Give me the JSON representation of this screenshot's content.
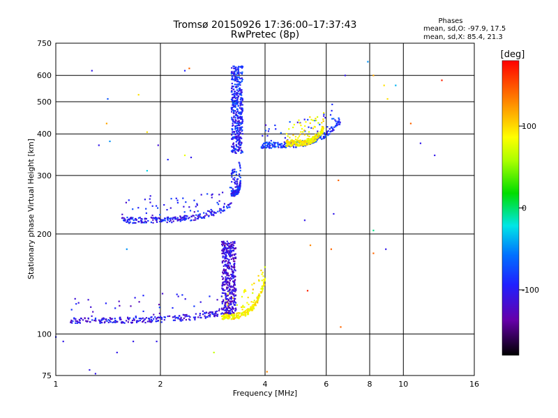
{
  "chart_data": {
    "type": "scatter",
    "title": "Tromsø 20150926 17:36:00–17:37:43",
    "subtitle": "RwPretec (8p)",
    "xlabel": "Frequency [MHz]",
    "ylabel": "Stationary phase Virtual Height [km]",
    "x_scale": "log",
    "y_scale": "log",
    "xlim": [
      1,
      16
    ],
    "ylim": [
      75,
      750
    ],
    "x_ticks": [
      1,
      2,
      4,
      6,
      8,
      10,
      16
    ],
    "y_ticks": [
      75,
      100,
      200,
      300,
      400,
      500,
      600,
      750
    ],
    "grid": true,
    "phase_stats": {
      "title": "Phases",
      "line_o": "mean, sd,O: -97.9, 17.5",
      "line_x": "mean, sd,X:  85.4, 21.3"
    },
    "colorbar": {
      "label": "[deg]",
      "range": [
        -180,
        180
      ],
      "ticks": [
        100,
        0,
        -100
      ]
    },
    "traces": [
      {
        "f_range": [
          1.1,
          3.0
        ],
        "h_range": [
          110,
          116
        ],
        "phase": -110
      },
      {
        "f_range": [
          3.0,
          4.0
        ],
        "h_range": [
          113,
          145
        ],
        "phase": 100
      },
      {
        "f_range": [
          3.0,
          3.3
        ],
        "h_range": [
          115,
          190
        ],
        "phase": -120
      },
      {
        "f_range": [
          1.55,
          3.2
        ],
        "h_range": [
          220,
          245
        ],
        "phase": -105
      },
      {
        "f_range": [
          3.2,
          3.4
        ],
        "h_range": [
          265,
          285
        ],
        "phase": -100
      },
      {
        "f_range": [
          3.2,
          3.45
        ],
        "h_range": [
          350,
          640
        ],
        "phase": -100
      },
      {
        "f_range": [
          3.9,
          6.6
        ],
        "h_range": [
          370,
          440
        ],
        "phase": -95
      },
      {
        "f_range": [
          4.6,
          5.9
        ],
        "h_range": [
          375,
          415
        ],
        "phase": 100
      }
    ],
    "scatter_points": [
      {
        "f": 1.27,
        "h": 620,
        "phase": -110
      },
      {
        "f": 2.35,
        "h": 620,
        "phase": -100
      },
      {
        "f": 2.42,
        "h": 630,
        "phase": 150
      },
      {
        "f": 1.73,
        "h": 525,
        "phase": 110
      },
      {
        "f": 1.41,
        "h": 510,
        "phase": -80
      },
      {
        "f": 1.4,
        "h": 430,
        "phase": 130
      },
      {
        "f": 1.43,
        "h": 380,
        "phase": -60
      },
      {
        "f": 1.33,
        "h": 370,
        "phase": -110
      },
      {
        "f": 1.83,
        "h": 405,
        "phase": 110
      },
      {
        "f": 1.83,
        "h": 310,
        "phase": -40
      },
      {
        "f": 1.97,
        "h": 370,
        "phase": -120
      },
      {
        "f": 2.1,
        "h": 335,
        "phase": -100
      },
      {
        "f": 2.35,
        "h": 345,
        "phase": 90
      },
      {
        "f": 2.45,
        "h": 340,
        "phase": -110
      },
      {
        "f": 7.9,
        "h": 660,
        "phase": -60
      },
      {
        "f": 8.2,
        "h": 600,
        "phase": 130
      },
      {
        "f": 8.8,
        "h": 560,
        "phase": 110
      },
      {
        "f": 9.0,
        "h": 510,
        "phase": 110
      },
      {
        "f": 9.5,
        "h": 560,
        "phase": -50
      },
      {
        "f": 10.5,
        "h": 430,
        "phase": 150
      },
      {
        "f": 11.2,
        "h": 375,
        "phase": -110
      },
      {
        "f": 12.3,
        "h": 345,
        "phase": -110
      },
      {
        "f": 12.9,
        "h": 580,
        "phase": 170
      },
      {
        "f": 6.8,
        "h": 600,
        "phase": -110
      },
      {
        "f": 6.5,
        "h": 290,
        "phase": 150
      },
      {
        "f": 6.3,
        "h": 230,
        "phase": -110
      },
      {
        "f": 8.2,
        "h": 205,
        "phase": -20
      },
      {
        "f": 8.2,
        "h": 175,
        "phase": 150
      },
      {
        "f": 8.9,
        "h": 180,
        "phase": -110
      },
      {
        "f": 6.2,
        "h": 180,
        "phase": 150
      },
      {
        "f": 5.4,
        "h": 185,
        "phase": 140
      },
      {
        "f": 6.6,
        "h": 105,
        "phase": 150
      },
      {
        "f": 5.3,
        "h": 135,
        "phase": 170
      },
      {
        "f": 4.05,
        "h": 77,
        "phase": 140
      },
      {
        "f": 1.0,
        "h": 98,
        "phase": -100
      },
      {
        "f": 1.05,
        "h": 95,
        "phase": -110
      },
      {
        "f": 1.25,
        "h": 78,
        "phase": -110
      },
      {
        "f": 1.3,
        "h": 76,
        "phase": -110
      },
      {
        "f": 1.5,
        "h": 88,
        "phase": -110
      },
      {
        "f": 1.67,
        "h": 95,
        "phase": -110
      },
      {
        "f": 1.95,
        "h": 95,
        "phase": -110
      },
      {
        "f": 2.85,
        "h": 88,
        "phase": 70
      },
      {
        "f": 1.6,
        "h": 180,
        "phase": -60
      },
      {
        "f": 5.2,
        "h": 220,
        "phase": -110
      }
    ]
  }
}
